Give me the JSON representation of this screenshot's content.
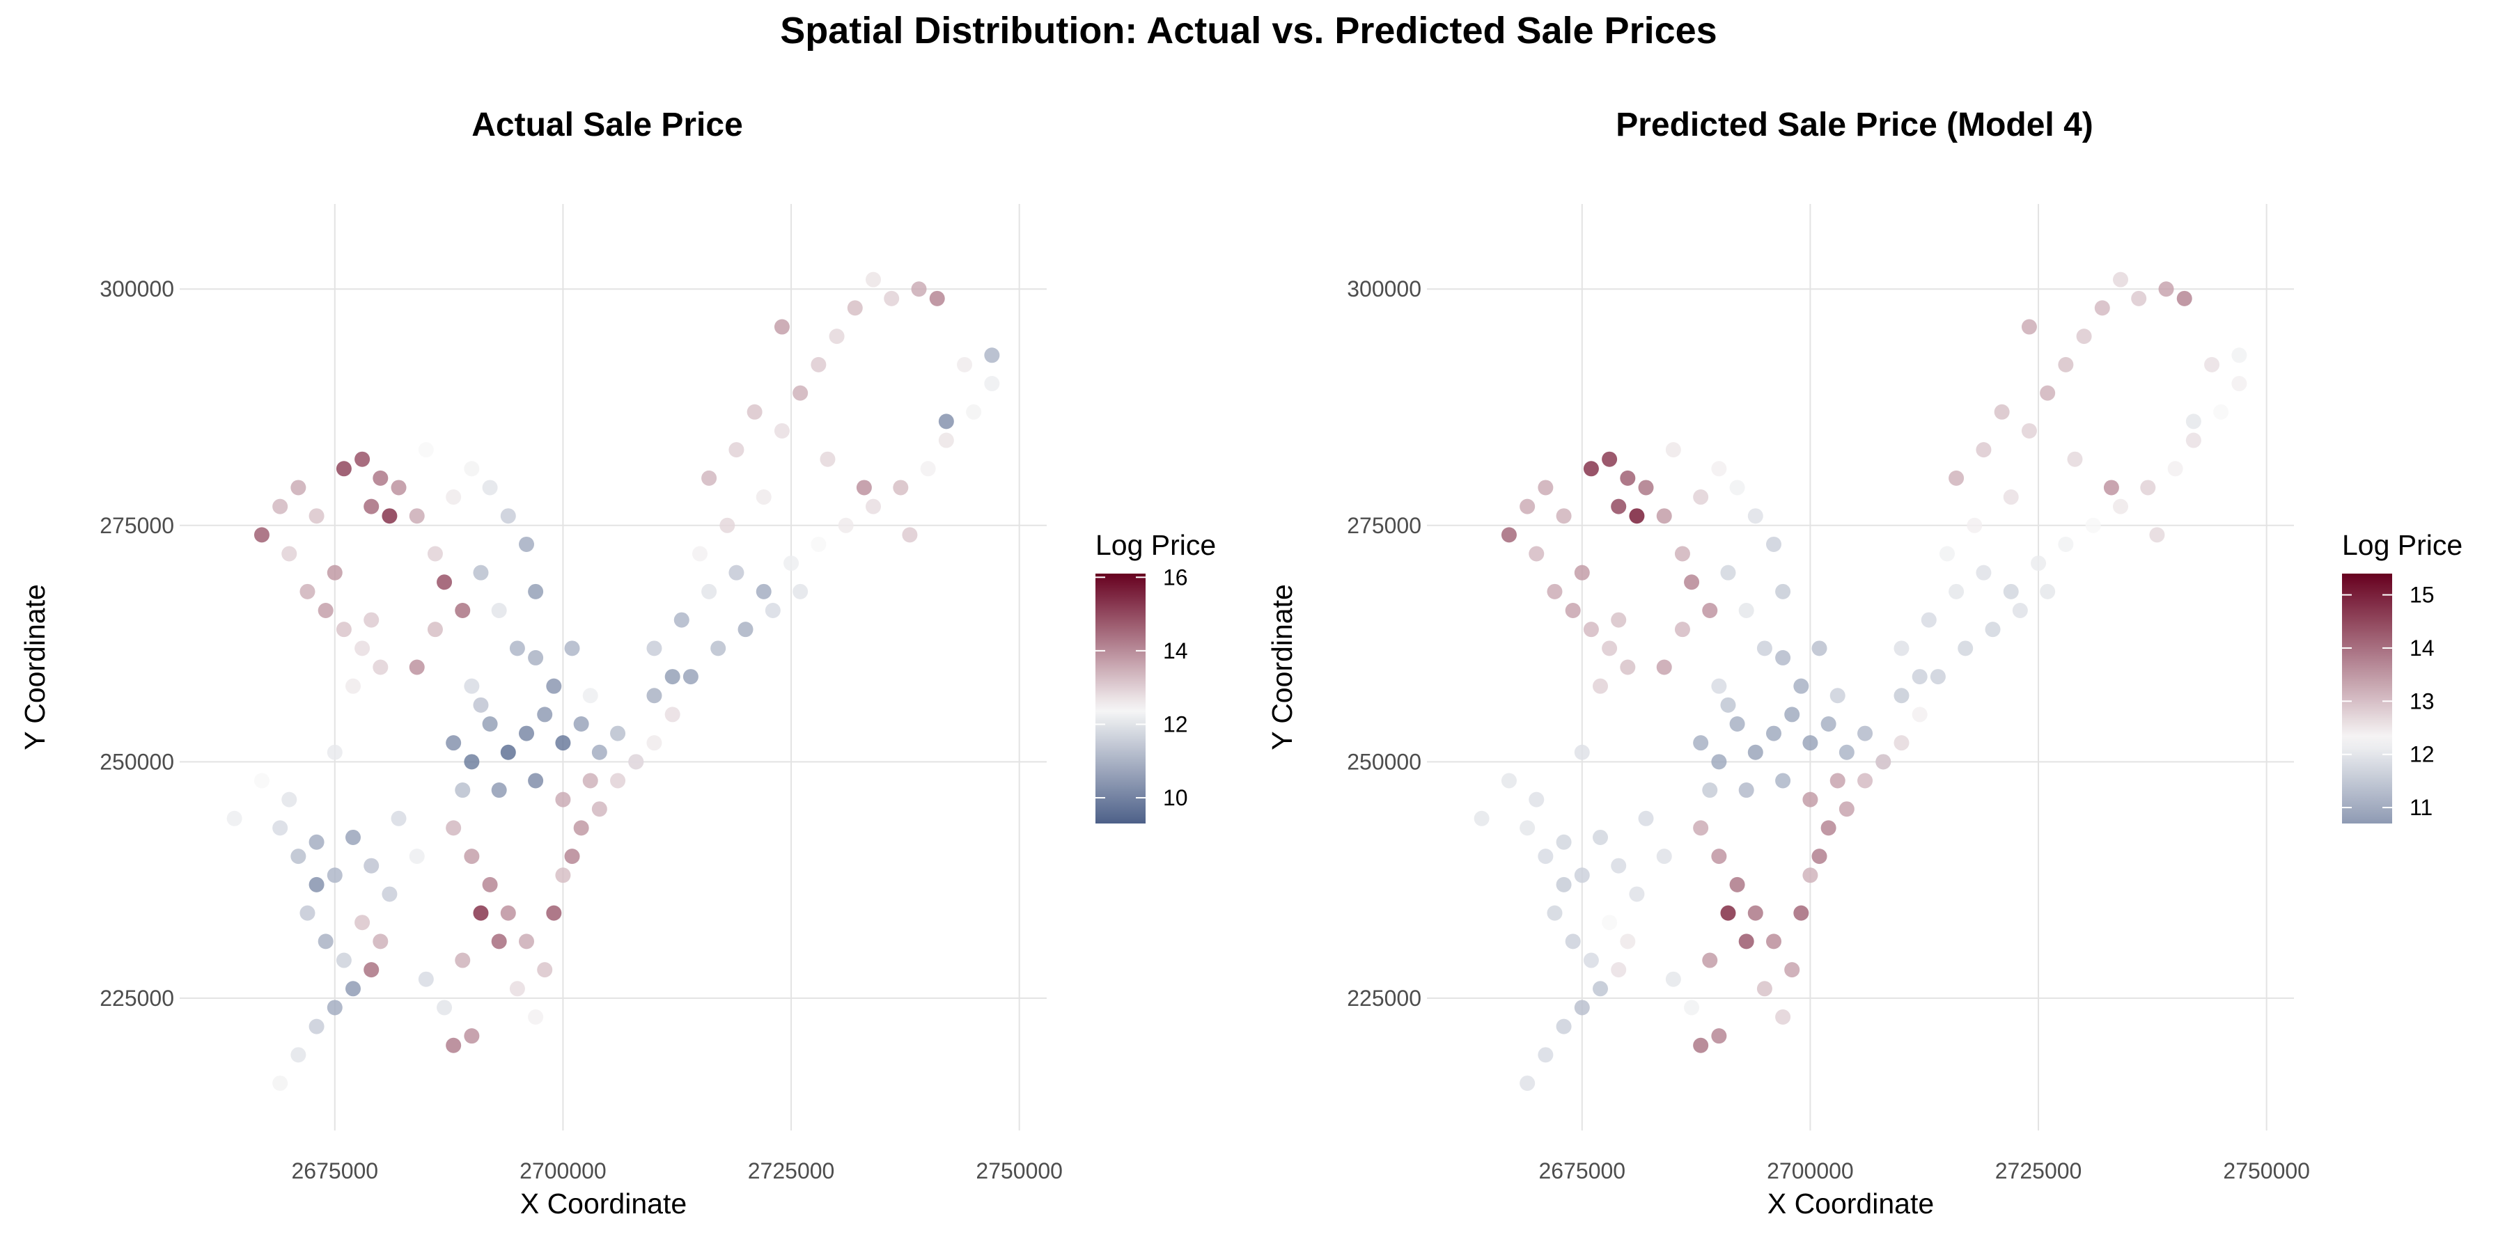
{
  "title": "Spatial Distribution: Actual vs. Predicted Sale Prices",
  "colors": {
    "low": "#2c4373",
    "mid": "#f7f7f7",
    "high": "#67001f"
  },
  "chart_data": [
    {
      "type": "scatter",
      "title": "Actual Sale Price",
      "xlabel": "X Coordinate",
      "ylabel": "Y Coordinate",
      "value_field": "actual",
      "xlim": [
        2658000,
        2753000
      ],
      "ylim": [
        211000,
        309000
      ],
      "x_ticks": [
        2675000,
        2700000,
        2725000,
        2750000
      ],
      "y_ticks": [
        225000,
        250000,
        275000,
        300000
      ],
      "grid": true,
      "legend": {
        "title": "Log Price",
        "position": "right",
        "ticks": [
          10,
          12,
          14,
          16
        ],
        "limits": [
          9.3,
          16.1
        ],
        "midpoint": 12.4
      }
    },
    {
      "type": "scatter",
      "title": "Predicted Sale Price (Model 4)",
      "xlabel": "X Coordinate",
      "ylabel": "Y Coordinate",
      "value_field": "predicted",
      "xlim": [
        2658000,
        2753000
      ],
      "ylim": [
        211000,
        309000
      ],
      "x_ticks": [
        2675000,
        2700000,
        2725000,
        2750000
      ],
      "y_ticks": [
        225000,
        250000,
        275000,
        300000
      ],
      "grid": true,
      "legend": {
        "title": "Log Price",
        "position": "right",
        "ticks": [
          11,
          12,
          13,
          14,
          15
        ],
        "limits": [
          10.7,
          15.4
        ],
        "midpoint": 12.3
      }
    }
  ],
  "points_fields": [
    "x",
    "y",
    "actual",
    "predicted"
  ],
  "points": [
    [
      2669000,
      243000,
      11.8,
      12.0
    ],
    [
      2671000,
      240000,
      11.2,
      11.8
    ],
    [
      2673000,
      241500,
      10.8,
      11.7
    ],
    [
      2675000,
      238000,
      11.0,
      11.6
    ],
    [
      2677000,
      242000,
      10.6,
      11.7
    ],
    [
      2679000,
      239000,
      11.3,
      11.8
    ],
    [
      2681000,
      236000,
      11.5,
      11.9
    ],
    [
      2672000,
      234000,
      11.4,
      11.7
    ],
    [
      2674000,
      231000,
      10.9,
      11.6
    ],
    [
      2676000,
      229000,
      11.6,
      11.8
    ],
    [
      2678000,
      233000,
      13.2,
      12.3
    ],
    [
      2680000,
      231000,
      13.5,
      12.5
    ],
    [
      2677000,
      226000,
      10.4,
      11.4
    ],
    [
      2675000,
      224000,
      10.8,
      11.3
    ],
    [
      2673000,
      222000,
      11.5,
      11.6
    ],
    [
      2671000,
      219000,
      12.0,
      11.8
    ],
    [
      2669000,
      216000,
      12.3,
      11.9
    ],
    [
      2670000,
      246000,
      12.0,
      11.9
    ],
    [
      2664000,
      244000,
      12.2,
      12.0
    ],
    [
      2667000,
      248000,
      12.4,
      12.0
    ],
    [
      2675000,
      251000,
      12.1,
      11.9
    ],
    [
      2682000,
      244000,
      11.8,
      11.8
    ],
    [
      2684000,
      240000,
      12.2,
      11.9
    ],
    [
      2679000,
      228000,
      14.5,
      12.6
    ],
    [
      2673000,
      237000,
      10.2,
      11.5
    ],
    [
      2667000,
      274000,
      14.8,
      14.2
    ],
    [
      2669000,
      277000,
      13.4,
      13.3
    ],
    [
      2671000,
      279000,
      13.6,
      13.3
    ],
    [
      2673000,
      276000,
      13.2,
      13.2
    ],
    [
      2670000,
      272000,
      13.0,
      13.1
    ],
    [
      2672000,
      268000,
      13.5,
      13.3
    ],
    [
      2674000,
      266000,
      13.8,
      13.4
    ],
    [
      2676000,
      264000,
      13.2,
      13.1
    ],
    [
      2678000,
      262000,
      12.8,
      12.9
    ],
    [
      2680000,
      260000,
      13.0,
      13.0
    ],
    [
      2675000,
      270000,
      13.9,
      13.5
    ],
    [
      2677000,
      258000,
      12.6,
      12.8
    ],
    [
      2679000,
      265000,
      13.1,
      13.0
    ],
    [
      2676000,
      281000,
      15.2,
      14.9
    ],
    [
      2678000,
      282000,
      15.0,
      14.8
    ],
    [
      2680000,
      280000,
      14.4,
      14.3
    ],
    [
      2682000,
      279000,
      14.0,
      14.0
    ],
    [
      2679000,
      277000,
      14.6,
      14.6
    ],
    [
      2681000,
      276000,
      15.5,
      15.2
    ],
    [
      2684000,
      276000,
      13.6,
      13.5
    ],
    [
      2686000,
      272000,
      13.0,
      13.2
    ],
    [
      2688000,
      278000,
      12.6,
      12.8
    ],
    [
      2690000,
      281000,
      12.3,
      12.4
    ],
    [
      2692000,
      279000,
      12.0,
      12.2
    ],
    [
      2694000,
      276000,
      11.5,
      11.9
    ],
    [
      2696000,
      273000,
      10.8,
      11.6
    ],
    [
      2691000,
      270000,
      11.2,
      11.7
    ],
    [
      2689000,
      266000,
      14.5,
      13.6
    ],
    [
      2686000,
      264000,
      13.3,
      13.1
    ],
    [
      2684000,
      260000,
      14.0,
      13.4
    ],
    [
      2693000,
      266000,
      12.0,
      12.0
    ],
    [
      2695000,
      262000,
      11.0,
      11.6
    ],
    [
      2697000,
      268000,
      10.5,
      11.5
    ],
    [
      2687000,
      269000,
      15.0,
      13.8
    ],
    [
      2685000,
      283000,
      12.4,
      12.5
    ],
    [
      2690000,
      258000,
      11.8,
      11.8
    ],
    [
      2688000,
      252000,
      10.2,
      11.0
    ],
    [
      2690000,
      250000,
      9.8,
      10.9
    ],
    [
      2692000,
      254000,
      10.5,
      11.0
    ],
    [
      2694000,
      251000,
      9.5,
      10.8
    ],
    [
      2696000,
      253000,
      10.0,
      10.9
    ],
    [
      2698000,
      255000,
      10.4,
      10.9
    ],
    [
      2700000,
      252000,
      9.7,
      10.8
    ],
    [
      2702000,
      254000,
      10.6,
      11.0
    ],
    [
      2704000,
      251000,
      10.8,
      11.1
    ],
    [
      2706000,
      253000,
      11.2,
      11.2
    ],
    [
      2708000,
      250000,
      11.5,
      11.4
    ],
    [
      2699000,
      258000,
      10.3,
      11.0
    ],
    [
      2697000,
      261000,
      10.9,
      11.2
    ],
    [
      2701000,
      262000,
      11.0,
      11.3
    ],
    [
      2689000,
      247000,
      11.2,
      11.5
    ],
    [
      2693000,
      247000,
      10.4,
      11.2
    ],
    [
      2697000,
      248000,
      10.1,
      11.1
    ],
    [
      2703000,
      257000,
      12.2,
      11.6
    ],
    [
      2691000,
      256000,
      11.3,
      11.4
    ],
    [
      2710000,
      257000,
      10.9,
      11.5
    ],
    [
      2712000,
      259000,
      10.5,
      11.6
    ],
    [
      2688000,
      243000,
      13.4,
      13.3
    ],
    [
      2690000,
      240000,
      13.8,
      13.6
    ],
    [
      2692000,
      237000,
      14.2,
      14.0
    ],
    [
      2694000,
      234000,
      14.0,
      14.0
    ],
    [
      2696000,
      231000,
      13.6,
      13.7
    ],
    [
      2698000,
      228000,
      13.2,
      13.4
    ],
    [
      2691000,
      234000,
      15.5,
      15.0
    ],
    [
      2693000,
      231000,
      14.6,
      14.4
    ],
    [
      2689000,
      229000,
      13.5,
      13.5
    ],
    [
      2695000,
      226000,
      12.8,
      13.0
    ],
    [
      2697000,
      223000,
      12.5,
      12.8
    ],
    [
      2699000,
      234000,
      14.8,
      14.2
    ],
    [
      2688000,
      220000,
      14.3,
      14.0
    ],
    [
      2690000,
      221000,
      14.0,
      13.8
    ],
    [
      2687000,
      224000,
      12.0,
      12.2
    ],
    [
      2685000,
      227000,
      11.8,
      12.0
    ],
    [
      2700000,
      238000,
      13.3,
      13.2
    ],
    [
      2700000,
      246000,
      13.6,
      13.5
    ],
    [
      2702000,
      243000,
      13.9,
      13.8
    ],
    [
      2704000,
      245000,
      13.4,
      13.4
    ],
    [
      2706000,
      248000,
      13.0,
      13.1
    ],
    [
      2708000,
      250000,
      12.8,
      12.9
    ],
    [
      2701000,
      240000,
      14.2,
      13.9
    ],
    [
      2703000,
      248000,
      13.5,
      13.4
    ],
    [
      2710000,
      252000,
      12.6,
      12.7
    ],
    [
      2710000,
      262000,
      11.5,
      11.9
    ],
    [
      2713000,
      265000,
      11.0,
      11.8
    ],
    [
      2716000,
      268000,
      12.0,
      12.0
    ],
    [
      2719000,
      270000,
      11.4,
      11.9
    ],
    [
      2722000,
      268000,
      10.8,
      11.7
    ],
    [
      2725000,
      271000,
      12.2,
      12.1
    ],
    [
      2728000,
      273000,
      12.4,
      12.2
    ],
    [
      2731000,
      275000,
      12.6,
      12.3
    ],
    [
      2734000,
      277000,
      12.8,
      12.5
    ],
    [
      2714000,
      259000,
      10.6,
      11.6
    ],
    [
      2717000,
      262000,
      11.2,
      11.7
    ],
    [
      2720000,
      264000,
      10.9,
      11.7
    ],
    [
      2712000,
      255000,
      12.8,
      12.4
    ],
    [
      2723000,
      266000,
      11.8,
      11.9
    ],
    [
      2726000,
      268000,
      12.0,
      12.0
    ],
    [
      2737000,
      279000,
      13.3,
      12.8
    ],
    [
      2740000,
      281000,
      12.5,
      12.4
    ],
    [
      2742000,
      284000,
      12.7,
      12.6
    ],
    [
      2745000,
      287000,
      12.3,
      12.3
    ],
    [
      2738000,
      274000,
      13.1,
      12.7
    ],
    [
      2715000,
      272000,
      12.5,
      12.2
    ],
    [
      2718000,
      275000,
      12.9,
      12.4
    ],
    [
      2716000,
      280000,
      13.4,
      13.2
    ],
    [
      2719000,
      283000,
      13.0,
      12.9
    ],
    [
      2721000,
      287000,
      13.2,
      13.0
    ],
    [
      2724000,
      285000,
      12.8,
      12.8
    ],
    [
      2726000,
      289000,
      13.5,
      13.2
    ],
    [
      2728000,
      292000,
      13.1,
      13.0
    ],
    [
      2730000,
      295000,
      12.9,
      12.9
    ],
    [
      2732000,
      298000,
      13.3,
      13.1
    ],
    [
      2734000,
      301000,
      12.7,
      12.7
    ],
    [
      2736000,
      299000,
      13.0,
      12.9
    ],
    [
      2739000,
      300000,
      13.6,
      13.4
    ],
    [
      2741000,
      299000,
      14.2,
      13.8
    ],
    [
      2744000,
      292000,
      12.6,
      12.6
    ],
    [
      2747000,
      290000,
      12.2,
      12.4
    ],
    [
      2742000,
      286000,
      10.2,
      12.0
    ],
    [
      2747000,
      293000,
      11.0,
      12.2
    ],
    [
      2722000,
      278000,
      12.6,
      12.6
    ],
    [
      2729000,
      282000,
      12.9,
      12.7
    ],
    [
      2733000,
      279000,
      14.0,
      13.6
    ],
    [
      2724000,
      296000,
      13.8,
      13.3
    ]
  ]
}
